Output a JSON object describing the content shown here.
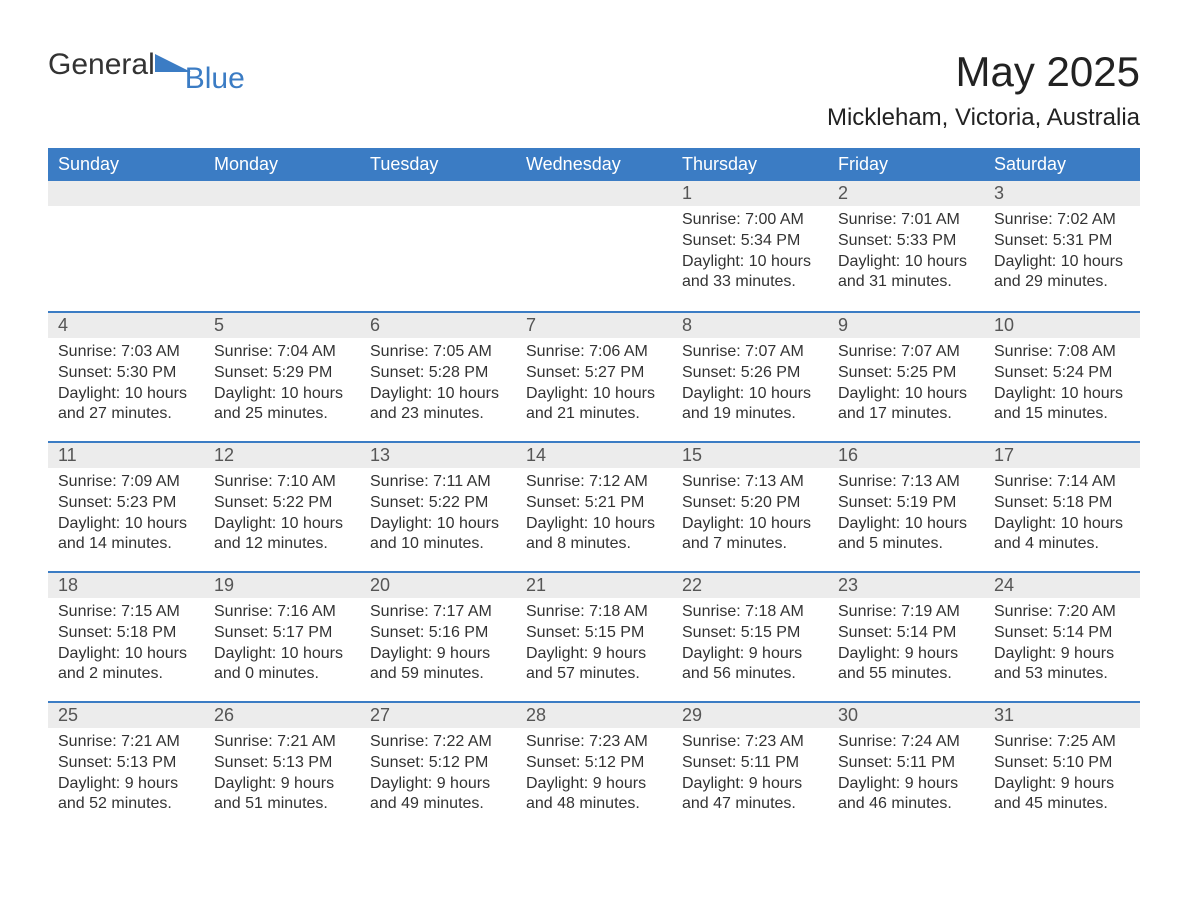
{
  "logo": {
    "text_general": "General",
    "text_blue": "Blue",
    "icon_color": "#3b7cc4"
  },
  "header": {
    "month_title": "May 2025",
    "location": "Mickleham, Victoria, Australia"
  },
  "colors": {
    "header_bg": "#3b7cc4",
    "header_text": "#ffffff",
    "daynum_bg": "#ececec",
    "row_border": "#3b7cc4",
    "body_text": "#333333",
    "background": "#ffffff"
  },
  "calendar": {
    "type": "table",
    "columns": [
      "Sunday",
      "Monday",
      "Tuesday",
      "Wednesday",
      "Thursday",
      "Friday",
      "Saturday"
    ],
    "weeks": [
      [
        null,
        null,
        null,
        null,
        {
          "day": "1",
          "sunrise": "Sunrise: 7:00 AM",
          "sunset": "Sunset: 5:34 PM",
          "daylight": "Daylight: 10 hours and 33 minutes."
        },
        {
          "day": "2",
          "sunrise": "Sunrise: 7:01 AM",
          "sunset": "Sunset: 5:33 PM",
          "daylight": "Daylight: 10 hours and 31 minutes."
        },
        {
          "day": "3",
          "sunrise": "Sunrise: 7:02 AM",
          "sunset": "Sunset: 5:31 PM",
          "daylight": "Daylight: 10 hours and 29 minutes."
        }
      ],
      [
        {
          "day": "4",
          "sunrise": "Sunrise: 7:03 AM",
          "sunset": "Sunset: 5:30 PM",
          "daylight": "Daylight: 10 hours and 27 minutes."
        },
        {
          "day": "5",
          "sunrise": "Sunrise: 7:04 AM",
          "sunset": "Sunset: 5:29 PM",
          "daylight": "Daylight: 10 hours and 25 minutes."
        },
        {
          "day": "6",
          "sunrise": "Sunrise: 7:05 AM",
          "sunset": "Sunset: 5:28 PM",
          "daylight": "Daylight: 10 hours and 23 minutes."
        },
        {
          "day": "7",
          "sunrise": "Sunrise: 7:06 AM",
          "sunset": "Sunset: 5:27 PM",
          "daylight": "Daylight: 10 hours and 21 minutes."
        },
        {
          "day": "8",
          "sunrise": "Sunrise: 7:07 AM",
          "sunset": "Sunset: 5:26 PM",
          "daylight": "Daylight: 10 hours and 19 minutes."
        },
        {
          "day": "9",
          "sunrise": "Sunrise: 7:07 AM",
          "sunset": "Sunset: 5:25 PM",
          "daylight": "Daylight: 10 hours and 17 minutes."
        },
        {
          "day": "10",
          "sunrise": "Sunrise: 7:08 AM",
          "sunset": "Sunset: 5:24 PM",
          "daylight": "Daylight: 10 hours and 15 minutes."
        }
      ],
      [
        {
          "day": "11",
          "sunrise": "Sunrise: 7:09 AM",
          "sunset": "Sunset: 5:23 PM",
          "daylight": "Daylight: 10 hours and 14 minutes."
        },
        {
          "day": "12",
          "sunrise": "Sunrise: 7:10 AM",
          "sunset": "Sunset: 5:22 PM",
          "daylight": "Daylight: 10 hours and 12 minutes."
        },
        {
          "day": "13",
          "sunrise": "Sunrise: 7:11 AM",
          "sunset": "Sunset: 5:22 PM",
          "daylight": "Daylight: 10 hours and 10 minutes."
        },
        {
          "day": "14",
          "sunrise": "Sunrise: 7:12 AM",
          "sunset": "Sunset: 5:21 PM",
          "daylight": "Daylight: 10 hours and 8 minutes."
        },
        {
          "day": "15",
          "sunrise": "Sunrise: 7:13 AM",
          "sunset": "Sunset: 5:20 PM",
          "daylight": "Daylight: 10 hours and 7 minutes."
        },
        {
          "day": "16",
          "sunrise": "Sunrise: 7:13 AM",
          "sunset": "Sunset: 5:19 PM",
          "daylight": "Daylight: 10 hours and 5 minutes."
        },
        {
          "day": "17",
          "sunrise": "Sunrise: 7:14 AM",
          "sunset": "Sunset: 5:18 PM",
          "daylight": "Daylight: 10 hours and 4 minutes."
        }
      ],
      [
        {
          "day": "18",
          "sunrise": "Sunrise: 7:15 AM",
          "sunset": "Sunset: 5:18 PM",
          "daylight": "Daylight: 10 hours and 2 minutes."
        },
        {
          "day": "19",
          "sunrise": "Sunrise: 7:16 AM",
          "sunset": "Sunset: 5:17 PM",
          "daylight": "Daylight: 10 hours and 0 minutes."
        },
        {
          "day": "20",
          "sunrise": "Sunrise: 7:17 AM",
          "sunset": "Sunset: 5:16 PM",
          "daylight": "Daylight: 9 hours and 59 minutes."
        },
        {
          "day": "21",
          "sunrise": "Sunrise: 7:18 AM",
          "sunset": "Sunset: 5:15 PM",
          "daylight": "Daylight: 9 hours and 57 minutes."
        },
        {
          "day": "22",
          "sunrise": "Sunrise: 7:18 AM",
          "sunset": "Sunset: 5:15 PM",
          "daylight": "Daylight: 9 hours and 56 minutes."
        },
        {
          "day": "23",
          "sunrise": "Sunrise: 7:19 AM",
          "sunset": "Sunset: 5:14 PM",
          "daylight": "Daylight: 9 hours and 55 minutes."
        },
        {
          "day": "24",
          "sunrise": "Sunrise: 7:20 AM",
          "sunset": "Sunset: 5:14 PM",
          "daylight": "Daylight: 9 hours and 53 minutes."
        }
      ],
      [
        {
          "day": "25",
          "sunrise": "Sunrise: 7:21 AM",
          "sunset": "Sunset: 5:13 PM",
          "daylight": "Daylight: 9 hours and 52 minutes."
        },
        {
          "day": "26",
          "sunrise": "Sunrise: 7:21 AM",
          "sunset": "Sunset: 5:13 PM",
          "daylight": "Daylight: 9 hours and 51 minutes."
        },
        {
          "day": "27",
          "sunrise": "Sunrise: 7:22 AM",
          "sunset": "Sunset: 5:12 PM",
          "daylight": "Daylight: 9 hours and 49 minutes."
        },
        {
          "day": "28",
          "sunrise": "Sunrise: 7:23 AM",
          "sunset": "Sunset: 5:12 PM",
          "daylight": "Daylight: 9 hours and 48 minutes."
        },
        {
          "day": "29",
          "sunrise": "Sunrise: 7:23 AM",
          "sunset": "Sunset: 5:11 PM",
          "daylight": "Daylight: 9 hours and 47 minutes."
        },
        {
          "day": "30",
          "sunrise": "Sunrise: 7:24 AM",
          "sunset": "Sunset: 5:11 PM",
          "daylight": "Daylight: 9 hours and 46 minutes."
        },
        {
          "day": "31",
          "sunrise": "Sunrise: 7:25 AM",
          "sunset": "Sunset: 5:10 PM",
          "daylight": "Daylight: 9 hours and 45 minutes."
        }
      ]
    ]
  }
}
